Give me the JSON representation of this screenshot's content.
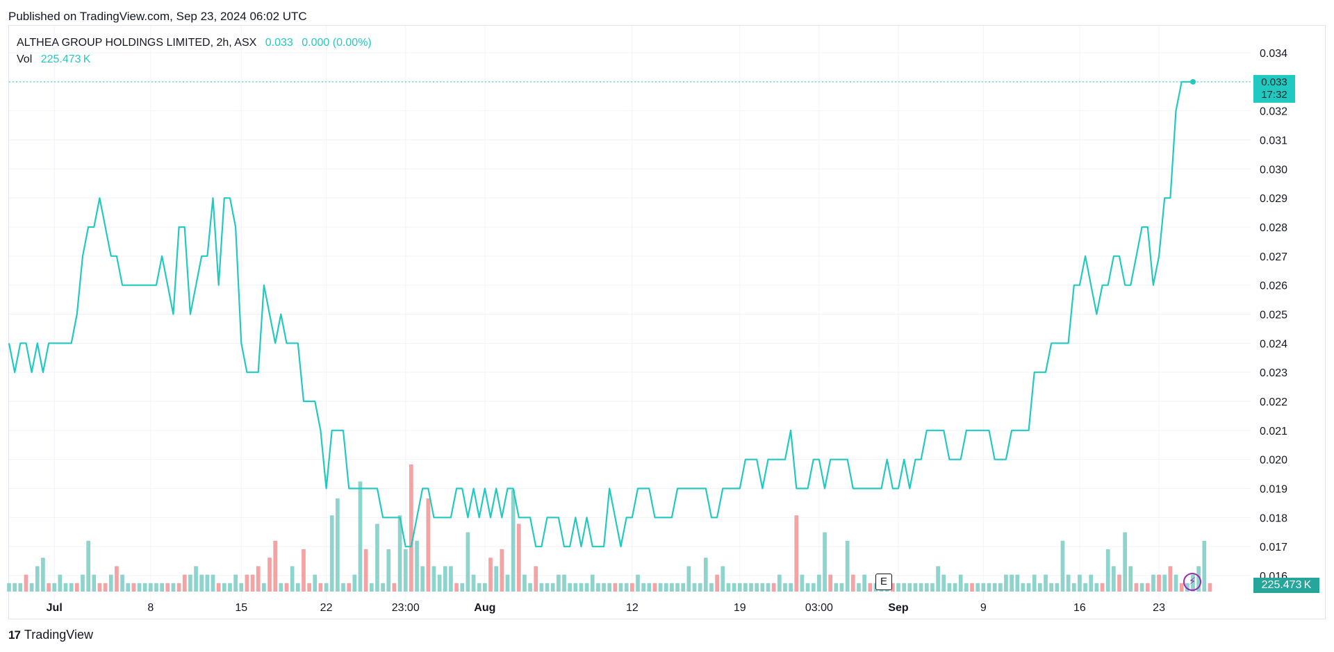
{
  "header": {
    "published": "Published on TradingView.com, Sep 23, 2024 06:02 UTC"
  },
  "legend": {
    "symbol": "ALTHEA GROUP HOLDINGS LIMITED, 2h, ASX",
    "last": "0.033",
    "change": "0.000 (0.00%)",
    "vol_label": "Vol",
    "vol_value": "225.473 K"
  },
  "price_tag": {
    "price": "0.033",
    "countdown": "17:32"
  },
  "volume_tag": {
    "value": "225.473 K"
  },
  "markers": {
    "earnings": "E",
    "flash_icon": "lightning-icon"
  },
  "footer": {
    "brand": "TradingView",
    "logo_mark": "17"
  },
  "colors": {
    "line": "#22c9c0",
    "vol_up": "#8fd3cd",
    "vol_down": "#f3a3a3",
    "grid": "#f0f3fa",
    "text": "#131722",
    "flash": "#9c27b0"
  },
  "chart_data": {
    "type": "line",
    "y_axis": {
      "ticks": [
        "0.034",
        "0.033",
        "0.032",
        "0.031",
        "0.030",
        "0.029",
        "0.028",
        "0.027",
        "0.026",
        "0.025",
        "0.024",
        "0.023",
        "0.022",
        "0.021",
        "0.020",
        "0.019",
        "0.018",
        "0.017",
        "0.016"
      ],
      "range": [
        0.0158,
        0.0344
      ],
      "position": "right"
    },
    "x_axis": {
      "ticks": [
        "Jul",
        "8",
        "15",
        "22",
        "23:00",
        "Aug",
        "12",
        "19",
        "03:00",
        "Sep",
        "9",
        "16",
        "23"
      ],
      "tick_index": [
        8,
        25,
        41,
        56,
        70,
        84,
        110,
        129,
        143,
        157,
        172,
        189,
        203
      ]
    },
    "series": [
      {
        "values": [
          0.024,
          0.023,
          0.024,
          0.024,
          0.023,
          0.024,
          0.023,
          0.024,
          0.024,
          0.024,
          0.024,
          0.024,
          0.025,
          0.027,
          0.028,
          0.028,
          0.029,
          0.028,
          0.027,
          0.027,
          0.026,
          0.026,
          0.026,
          0.026,
          0.026,
          0.026,
          0.026,
          0.027,
          0.026,
          0.025,
          0.028,
          0.028,
          0.025,
          0.026,
          0.027,
          0.027,
          0.029,
          0.026,
          0.029,
          0.029,
          0.028,
          0.024,
          0.023,
          0.023,
          0.023,
          0.026,
          0.025,
          0.024,
          0.025,
          0.024,
          0.024,
          0.024,
          0.022,
          0.022,
          0.022,
          0.021,
          0.019,
          0.021,
          0.021,
          0.021,
          0.019,
          0.019,
          0.019,
          0.019,
          0.019,
          0.019,
          0.018,
          0.018,
          0.018,
          0.018,
          0.017,
          0.017,
          0.018,
          0.019,
          0.019,
          0.018,
          0.018,
          0.018,
          0.018,
          0.019,
          0.019,
          0.018,
          0.019,
          0.018,
          0.019,
          0.018,
          0.019,
          0.018,
          0.019,
          0.019,
          0.018,
          0.018,
          0.018,
          0.017,
          0.017,
          0.018,
          0.018,
          0.018,
          0.017,
          0.017,
          0.018,
          0.017,
          0.018,
          0.017,
          0.017,
          0.017,
          0.019,
          0.018,
          0.017,
          0.018,
          0.018,
          0.019,
          0.019,
          0.019,
          0.018,
          0.018,
          0.018,
          0.018,
          0.019,
          0.019,
          0.019,
          0.019,
          0.019,
          0.019,
          0.018,
          0.018,
          0.019,
          0.019,
          0.019,
          0.019,
          0.02,
          0.02,
          0.02,
          0.019,
          0.02,
          0.02,
          0.02,
          0.02,
          0.021,
          0.019,
          0.019,
          0.019,
          0.02,
          0.02,
          0.019,
          0.02,
          0.02,
          0.02,
          0.02,
          0.019,
          0.019,
          0.019,
          0.019,
          0.019,
          0.019,
          0.02,
          0.019,
          0.019,
          0.02,
          0.019,
          0.02,
          0.02,
          0.021,
          0.021,
          0.021,
          0.021,
          0.02,
          0.02,
          0.02,
          0.021,
          0.021,
          0.021,
          0.021,
          0.021,
          0.02,
          0.02,
          0.02,
          0.021,
          0.021,
          0.021,
          0.021,
          0.023,
          0.023,
          0.023,
          0.024,
          0.024,
          0.024,
          0.024,
          0.026,
          0.026,
          0.027,
          0.026,
          0.025,
          0.026,
          0.026,
          0.027,
          0.027,
          0.026,
          0.026,
          0.027,
          0.028,
          0.028,
          0.026,
          0.027,
          0.029,
          0.029,
          0.032,
          0.033,
          0.033,
          0.033
        ]
      }
    ],
    "volume": {
      "values": [
        1,
        1,
        1,
        2,
        1,
        3,
        4,
        1,
        1,
        2,
        1,
        1,
        1,
        2,
        6,
        2,
        1,
        1,
        2,
        3,
        2,
        1,
        1,
        1,
        1,
        1,
        1,
        1,
        1,
        1,
        1,
        2,
        2,
        3,
        2,
        2,
        2,
        1,
        1,
        1,
        2,
        1,
        2,
        2,
        3,
        1,
        4,
        6,
        1,
        1,
        3,
        1,
        5,
        1,
        2,
        1,
        1,
        9,
        11,
        1,
        1,
        2,
        13,
        5,
        1,
        8,
        1,
        5,
        1,
        9,
        5,
        15,
        6,
        3,
        11,
        3,
        2,
        3,
        3,
        1,
        1,
        7,
        2,
        1,
        1,
        4,
        3,
        5,
        2,
        12,
        8,
        2,
        1,
        3,
        1,
        1,
        1,
        2,
        2,
        1,
        1,
        1,
        1,
        2,
        1,
        1,
        1,
        1,
        1,
        1,
        1,
        2,
        1,
        1,
        1,
        1,
        1,
        1,
        1,
        1,
        3,
        1,
        1,
        4,
        1,
        2,
        3,
        1,
        1,
        1,
        1,
        1,
        1,
        1,
        1,
        1,
        2,
        1,
        1,
        9,
        2,
        1,
        1,
        2,
        7,
        2,
        1,
        1,
        6,
        2,
        1,
        2,
        1,
        1,
        1,
        2,
        1,
        1,
        1,
        1,
        1,
        1,
        1,
        1,
        3,
        2,
        1,
        1,
        2,
        1,
        1,
        1,
        1,
        1,
        1,
        1,
        2,
        2,
        2,
        1,
        1,
        2,
        1,
        2,
        1,
        1,
        6,
        2,
        1,
        2,
        1,
        2,
        1,
        1,
        5,
        3,
        2,
        7,
        3,
        1,
        1,
        1,
        2,
        2,
        2,
        3,
        2,
        1,
        1,
        2,
        3,
        6,
        1
      ],
      "up": [
        1,
        1,
        1,
        0,
        1,
        1,
        1,
        0,
        1,
        1,
        1,
        1,
        0,
        1,
        1,
        1,
        0,
        0,
        1,
        0,
        1,
        1,
        0,
        1,
        1,
        1,
        1,
        1,
        0,
        1,
        0,
        0,
        1,
        1,
        1,
        1,
        1,
        0,
        1,
        1,
        1,
        1,
        0,
        0,
        0,
        1,
        0,
        0,
        1,
        0,
        1,
        1,
        0,
        0,
        1,
        0,
        1,
        1,
        1,
        1,
        0,
        1,
        1,
        0,
        1,
        1,
        1,
        1,
        0,
        1,
        1,
        0,
        1,
        1,
        0,
        1,
        1,
        1,
        1,
        0,
        1,
        1,
        1,
        1,
        1,
        0,
        1,
        0,
        1,
        1,
        0,
        1,
        1,
        0,
        1,
        1,
        1,
        1,
        1,
        1,
        1,
        1,
        1,
        1,
        1,
        1,
        1,
        0,
        1,
        1,
        0,
        1,
        1,
        1,
        0,
        1,
        1,
        1,
        1,
        1,
        1,
        1,
        1,
        1,
        1,
        0,
        1,
        1,
        1,
        1,
        1,
        1,
        1,
        1,
        1,
        0,
        1,
        1,
        1,
        0,
        1,
        1,
        1,
        1,
        1,
        0,
        1,
        1,
        1,
        0,
        1,
        1,
        0,
        1,
        1,
        1,
        0,
        1,
        1,
        1,
        1,
        1,
        1,
        1,
        1,
        1,
        1,
        1,
        1,
        1,
        0,
        1,
        1,
        1,
        1,
        1,
        1,
        1,
        1,
        1,
        1,
        1,
        1,
        1,
        1,
        1,
        1,
        1,
        1,
        1,
        1,
        1,
        1,
        0,
        1,
        1,
        0,
        1,
        1,
        0,
        1,
        0,
        1,
        0,
        1,
        0,
        1,
        0,
        1,
        1,
        1,
        1
      ],
      "last_value": "225.473 K"
    },
    "grid": true,
    "last_price_line": true
  }
}
